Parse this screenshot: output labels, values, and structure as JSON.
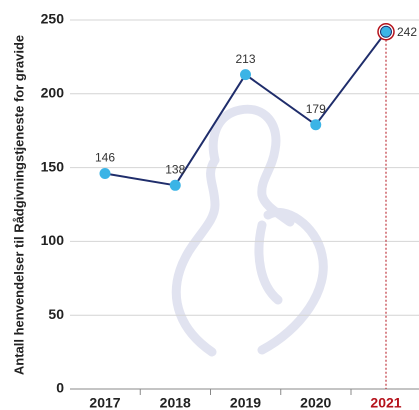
{
  "chart_data": {
    "type": "line",
    "y_label": "Antall henvendelser til Rådgivningstjeneste for gravide",
    "categories": [
      "2017",
      "2018",
      "2019",
      "2020",
      "2021"
    ],
    "values": [
      146,
      138,
      213,
      179,
      242
    ],
    "line_color": "#1f2d6b",
    "marker_color": "#3bb4e6",
    "highlight_index": 4,
    "highlight_color": "#b5121b",
    "ylim": [
      0,
      250
    ],
    "yticks": [
      0,
      50,
      100,
      150,
      200,
      250
    ],
    "grid": true
  }
}
